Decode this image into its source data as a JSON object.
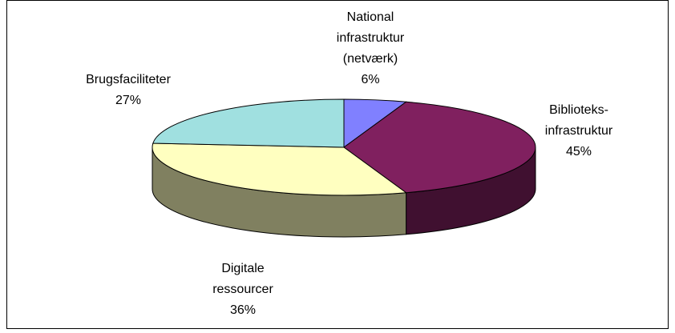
{
  "chart_data": {
    "type": "pie3d",
    "categories": [
      [
        "National",
        "infrastruktur",
        "(netværk)"
      ],
      [
        "Biblioteks-",
        "infrastruktur"
      ],
      [
        "Digitale",
        "ressourcer"
      ],
      [
        "Brugsfaciliteter"
      ]
    ],
    "values": [
      6,
      45,
      36,
      27
    ],
    "value_labels": [
      "6%",
      "45%",
      "36%",
      "27%"
    ],
    "colors": [
      "#8080ff",
      "#80205f",
      "#ffffc0",
      "#a0e0e0"
    ]
  }
}
